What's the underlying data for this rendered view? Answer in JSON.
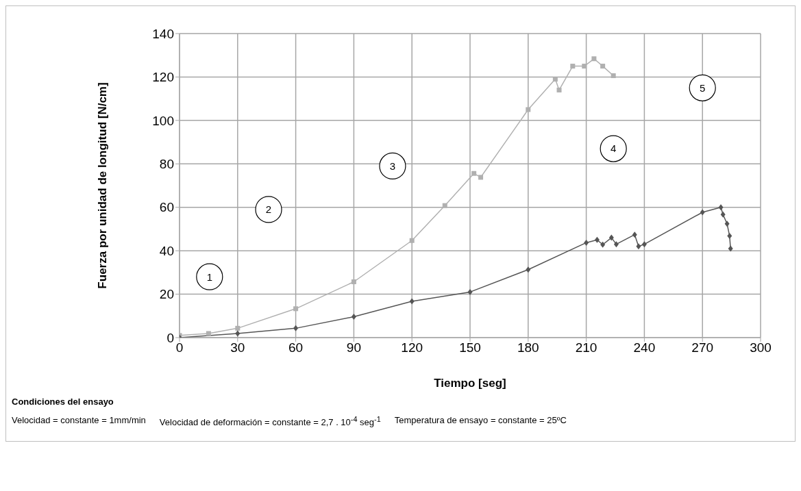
{
  "chart_data": {
    "type": "line",
    "xlabel": "Tiempo [seg]",
    "ylabel": "Fuerza por unidad de longitud [N/cm]",
    "xlim": [
      0,
      300
    ],
    "xticks": [
      0,
      30,
      60,
      90,
      120,
      150,
      180,
      210,
      240,
      270,
      300
    ],
    "ylim": [
      0,
      140
    ],
    "yticks": [
      0,
      20,
      40,
      60,
      80,
      100,
      120,
      140
    ],
    "grid": true,
    "series": [
      {
        "color": "#b0b0b0",
        "marker": "square",
        "x": [
          0,
          15,
          30,
          60,
          90,
          120,
          137,
          152,
          155.5,
          180,
          194,
          196,
          203,
          209,
          214,
          218.5,
          224
        ],
        "values": [
          1,
          1.9,
          4.3,
          13.3,
          25.7,
          44.7,
          60.8,
          75.6,
          73.8,
          105,
          119,
          114,
          125,
          125,
          128.4,
          125,
          120.6
        ]
      },
      {
        "color": "#555555",
        "marker": "diamond",
        "x": [
          0,
          30,
          60,
          90,
          120,
          150,
          180,
          210,
          215.6,
          218.5,
          223,
          225.5,
          235,
          237,
          240,
          270,
          279.5,
          280.6,
          282.7,
          284,
          284.5
        ],
        "values": [
          0,
          1.9,
          4.3,
          9.6,
          16.7,
          21,
          31.3,
          43.7,
          45,
          42.8,
          46,
          43,
          47.4,
          42,
          43,
          57.7,
          60,
          56.7,
          52.4,
          46.8,
          41
        ]
      }
    ],
    "annotations": [
      {
        "text": "1",
        "x": 15.5,
        "y": 28
      },
      {
        "text": "2",
        "x": 46,
        "y": 59
      },
      {
        "text": "3",
        "x": 110,
        "y": 79
      },
      {
        "text": "4",
        "x": 224,
        "y": 87
      },
      {
        "text": "5",
        "x": 270,
        "y": 115
      },
      "Condiciones del ensayo",
      "Velocidad = constante = 1mm/min",
      "Velocidad de deformación = constante = 2,7 . 10$^{-4}$ seg$^{-1}$",
      "Temperatura de ensayo = constante = 25ºC"
    ]
  }
}
